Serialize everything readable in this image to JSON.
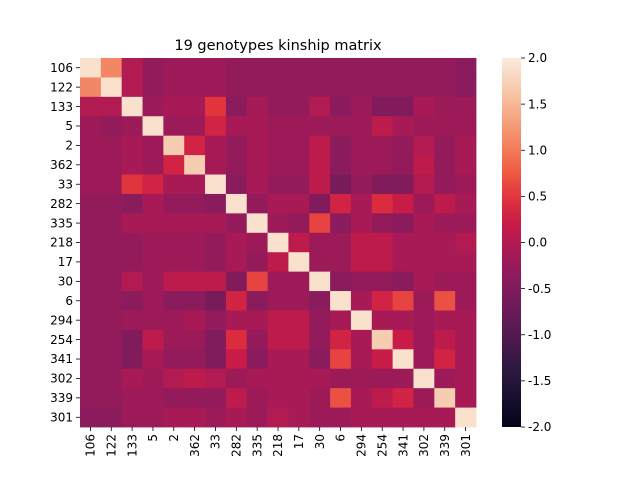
{
  "chart_data": {
    "type": "heatmap",
    "title": "19 genotypes kinship matrix",
    "labels": [
      "106",
      "122",
      "133",
      "5",
      "2",
      "362",
      "33",
      "282",
      "335",
      "218",
      "17",
      "30",
      "6",
      "294",
      "254",
      "341",
      "302",
      "339",
      "301"
    ],
    "colorbar": {
      "min": -2.0,
      "max": 2.0,
      "ticks": [
        "-2.0",
        "-1.5",
        "-1.0",
        "-0.5",
        "0.0",
        "0.5",
        "1.0",
        "1.5",
        "2.0"
      ]
    },
    "matrix": [
      [
        1.9,
        1.1,
        0.0,
        -0.3,
        -0.2,
        -0.2,
        -0.2,
        -0.3,
        -0.3,
        -0.3,
        -0.3,
        -0.3,
        -0.3,
        -0.3,
        -0.3,
        -0.3,
        -0.3,
        -0.3,
        -0.4
      ],
      [
        1.1,
        1.9,
        0.0,
        -0.3,
        -0.2,
        -0.2,
        -0.2,
        -0.3,
        -0.3,
        -0.3,
        -0.3,
        -0.3,
        -0.3,
        -0.3,
        -0.3,
        -0.3,
        -0.3,
        -0.3,
        -0.4
      ],
      [
        0.0,
        0.0,
        1.9,
        -0.2,
        -0.1,
        -0.1,
        0.5,
        -0.4,
        -0.1,
        -0.3,
        -0.3,
        0.0,
        -0.4,
        -0.2,
        -0.5,
        -0.5,
        -0.1,
        -0.2,
        -0.2
      ],
      [
        -0.2,
        -0.3,
        -0.2,
        1.9,
        -0.2,
        -0.2,
        0.3,
        -0.1,
        -0.1,
        -0.2,
        -0.2,
        -0.2,
        -0.2,
        -0.2,
        0.1,
        -0.1,
        -0.2,
        -0.2,
        -0.2
      ],
      [
        -0.2,
        -0.2,
        -0.1,
        -0.2,
        1.7,
        0.3,
        -0.1,
        -0.3,
        -0.1,
        -0.2,
        -0.2,
        0.1,
        -0.4,
        -0.2,
        -0.2,
        -0.3,
        0.0,
        -0.3,
        -0.1
      ],
      [
        -0.2,
        -0.2,
        -0.1,
        -0.2,
        0.3,
        1.7,
        -0.1,
        -0.3,
        -0.1,
        -0.2,
        -0.2,
        0.1,
        -0.4,
        -0.2,
        -0.2,
        -0.3,
        0.1,
        -0.3,
        -0.1
      ],
      [
        -0.2,
        -0.2,
        0.5,
        0.3,
        -0.1,
        -0.1,
        1.9,
        -0.4,
        -0.1,
        -0.3,
        -0.3,
        0.1,
        -0.6,
        -0.3,
        -0.5,
        -0.5,
        0.0,
        -0.3,
        -0.2
      ],
      [
        -0.3,
        -0.3,
        -0.4,
        -0.1,
        -0.3,
        -0.3,
        -0.4,
        1.9,
        -0.3,
        -0.1,
        -0.1,
        -0.5,
        0.3,
        -0.1,
        0.4,
        0.2,
        -0.2,
        0.1,
        -0.1
      ],
      [
        -0.3,
        -0.3,
        -0.1,
        -0.1,
        -0.1,
        -0.1,
        -0.1,
        -0.3,
        1.9,
        -0.2,
        -0.3,
        0.6,
        -0.4,
        -0.1,
        -0.3,
        -0.4,
        -0.1,
        -0.2,
        -0.2
      ],
      [
        -0.3,
        -0.3,
        -0.3,
        -0.2,
        -0.2,
        -0.2,
        -0.3,
        -0.1,
        -0.2,
        1.9,
        0.1,
        -0.2,
        -0.2,
        0.1,
        0.1,
        -0.1,
        -0.1,
        -0.1,
        0.0
      ],
      [
        -0.3,
        -0.3,
        -0.3,
        -0.2,
        -0.2,
        -0.2,
        -0.3,
        -0.1,
        -0.3,
        0.1,
        1.9,
        -0.2,
        -0.2,
        0.1,
        0.1,
        -0.1,
        -0.1,
        -0.1,
        -0.1
      ],
      [
        -0.3,
        -0.3,
        0.0,
        -0.2,
        0.1,
        0.1,
        0.1,
        -0.5,
        0.6,
        -0.2,
        -0.2,
        1.9,
        -0.4,
        -0.3,
        -0.3,
        -0.4,
        -0.1,
        -0.2,
        -0.2
      ],
      [
        -0.3,
        -0.3,
        -0.4,
        -0.2,
        -0.4,
        -0.4,
        -0.6,
        0.3,
        -0.4,
        -0.2,
        -0.2,
        -0.4,
        1.9,
        -0.1,
        0.3,
        0.6,
        -0.2,
        0.7,
        -0.2
      ],
      [
        -0.3,
        -0.3,
        -0.2,
        -0.2,
        -0.2,
        -0.1,
        -0.3,
        -0.1,
        -0.1,
        0.1,
        0.1,
        -0.3,
        -0.1,
        1.9,
        -0.1,
        -0.1,
        -0.2,
        -0.1,
        -0.1
      ],
      [
        -0.3,
        -0.3,
        -0.5,
        0.1,
        -0.2,
        -0.2,
        -0.5,
        0.4,
        -0.3,
        0.1,
        0.1,
        -0.3,
        0.3,
        -0.1,
        1.7,
        0.2,
        -0.2,
        0.1,
        -0.1
      ],
      [
        -0.3,
        -0.3,
        -0.5,
        -0.1,
        -0.3,
        -0.3,
        -0.5,
        0.2,
        -0.4,
        -0.1,
        -0.1,
        -0.4,
        0.6,
        -0.1,
        0.2,
        1.9,
        -0.2,
        0.3,
        -0.1
      ],
      [
        -0.3,
        -0.3,
        -0.1,
        -0.2,
        0.0,
        0.1,
        0.0,
        -0.2,
        -0.1,
        -0.1,
        -0.1,
        -0.1,
        -0.2,
        -0.2,
        -0.2,
        -0.2,
        1.9,
        -0.2,
        -0.1
      ],
      [
        -0.3,
        -0.3,
        -0.2,
        -0.2,
        -0.3,
        -0.3,
        -0.3,
        0.1,
        -0.2,
        -0.1,
        -0.1,
        -0.2,
        0.7,
        -0.1,
        0.1,
        0.3,
        -0.2,
        1.7,
        -0.1
      ],
      [
        -0.4,
        -0.4,
        -0.2,
        -0.2,
        -0.1,
        -0.1,
        -0.2,
        -0.1,
        -0.2,
        0.0,
        -0.1,
        -0.2,
        -0.2,
        -0.1,
        -0.1,
        -0.1,
        -0.1,
        -0.1,
        1.9
      ]
    ]
  }
}
